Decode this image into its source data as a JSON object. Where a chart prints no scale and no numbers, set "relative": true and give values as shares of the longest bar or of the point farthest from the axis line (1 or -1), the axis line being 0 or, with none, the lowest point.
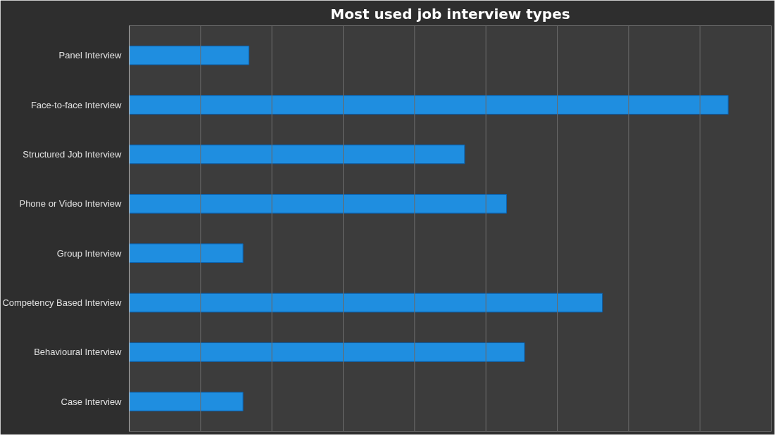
{
  "chart_data": {
    "type": "bar",
    "orientation": "horizontal",
    "relative": true,
    "title": "Most used job interview types",
    "categories": [
      "Panel Interview",
      "Face-to-face Interview",
      "Structured Job Interview",
      "Phone or Video Interview",
      "Group Interview",
      "Competency Based Interview",
      "Behavioural Interview",
      "Case Interview"
    ],
    "values": [
      0.2,
      1,
      0.56,
      0.63,
      0.19,
      0.79,
      0.66,
      0.19
    ],
    "color": "#1f8ee0",
    "grid": "x"
  }
}
